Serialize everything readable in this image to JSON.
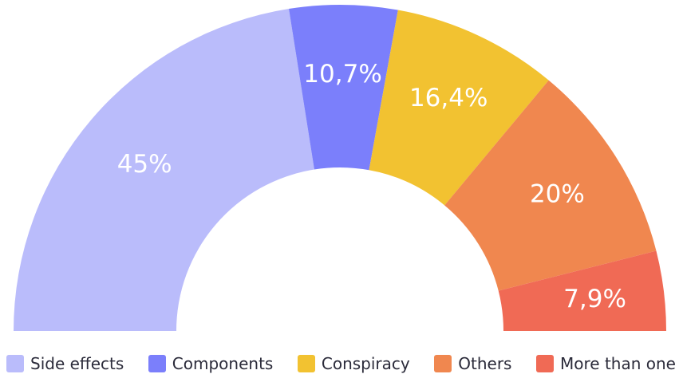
{
  "chart_data": {
    "type": "pie",
    "variant": "semicircle-donut",
    "categories": [
      "Side effects",
      "Components",
      "Conspiracy",
      "Others",
      "More than one"
    ],
    "values": [
      45,
      10.7,
      16.4,
      20,
      7.9
    ],
    "labels": [
      "45%",
      "10,7%",
      "16,4%",
      "20%",
      "7,9%"
    ],
    "colors": [
      "#babcfb",
      "#7b7ffb",
      "#f2c231",
      "#f0874f",
      "#f06a55"
    ],
    "legend_position": "bottom"
  }
}
